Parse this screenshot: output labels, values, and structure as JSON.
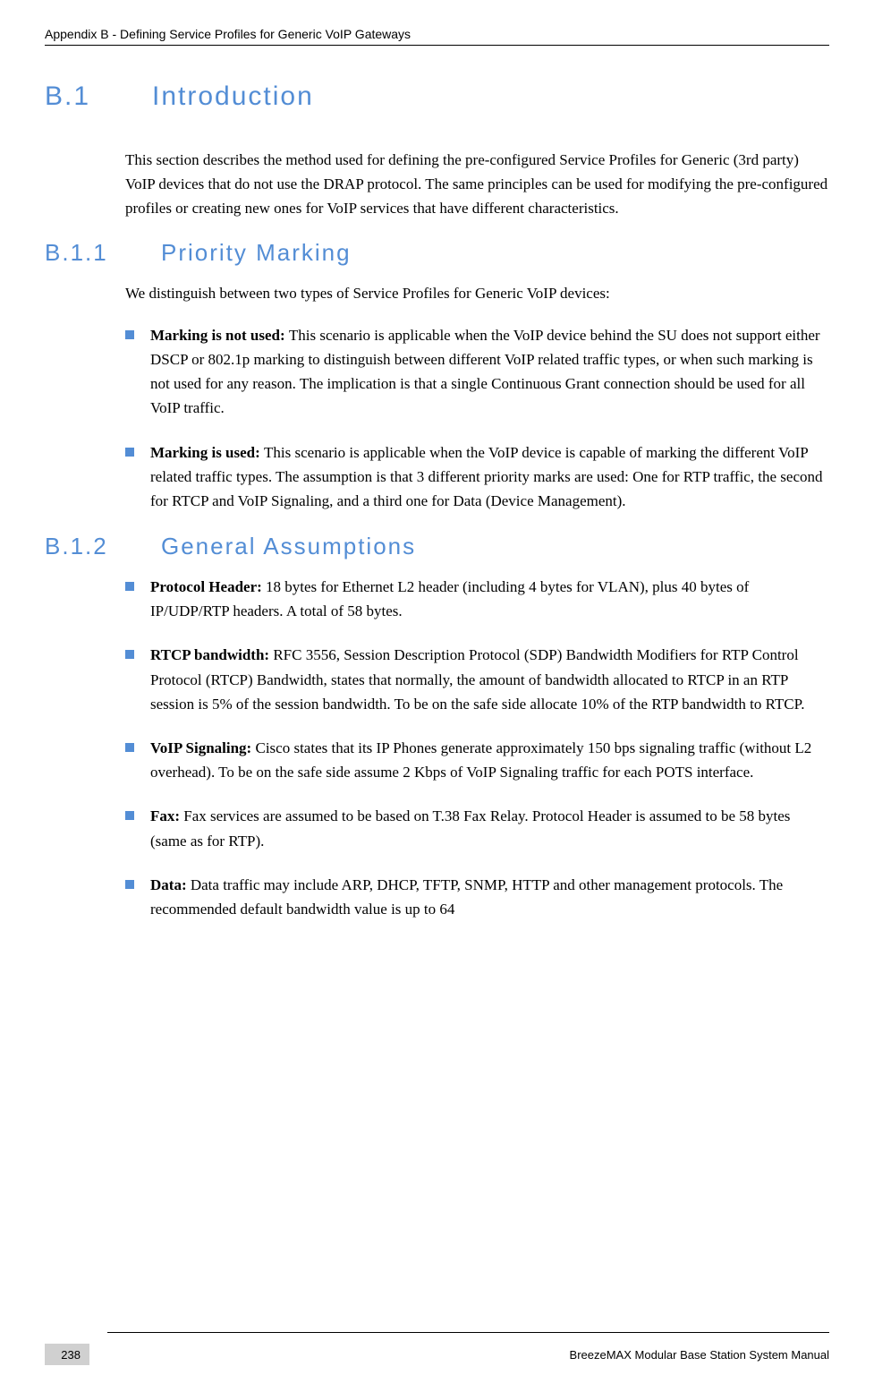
{
  "header": "Appendix B - Defining Service Profiles for Generic VoIP Gateways",
  "h1": {
    "num": "B.1",
    "title": "Introduction"
  },
  "intro_para": "This section describes the method used for defining the pre-configured Service Profiles for Generic (3rd party) VoIP devices that do not use the DRAP protocol. The same principles can be used for modifying the pre-configured profiles or creating new ones for VoIP services that have different characteristics.",
  "h2a": {
    "num": "B.1.1",
    "title": "Priority Marking"
  },
  "h2a_intro": "We distinguish between two types of Service Profiles for Generic VoIP devices:",
  "h2a_bullets": [
    {
      "lead": "Marking is not used: ",
      "rest": "This scenario is applicable when the VoIP device behind the SU does not support either DSCP or 802.1p marking to distinguish between different VoIP related traffic types, or when such marking is not used for any reason. The implication is that a single Continuous Grant connection should be used for all VoIP traffic."
    },
    {
      "lead": "Marking is used: ",
      "rest": "This scenario is applicable when the VoIP device is capable of marking the different VoIP related traffic types. The assumption is that 3 different priority marks are used: One for RTP traffic, the second for RTCP and VoIP Signaling, and a third one for Data (Device Management)."
    }
  ],
  "h2b": {
    "num": "B.1.2",
    "title": "General Assumptions"
  },
  "h2b_bullets": [
    {
      "lead": "Protocol Header: ",
      "rest": "18 bytes for Ethernet L2 header (including 4 bytes for VLAN), plus 40 bytes of IP/UDP/RTP headers. A total of 58 bytes."
    },
    {
      "lead": "RTCP bandwidth: ",
      "rest": "RFC 3556, Session Description Protocol (SDP) Bandwidth Modifiers for RTP Control Protocol (RTCP) Bandwidth, states that normally, the amount of bandwidth allocated to RTCP in an RTP session is 5% of the session bandwidth. To be on the safe side allocate 10% of the RTP bandwidth to RTCP."
    },
    {
      "lead": "VoIP Signaling: ",
      "rest": "Cisco states that its IP Phones generate approximately 150 bps signaling traffic (without L2 overhead). To be on the safe side assume 2 Kbps of VoIP Signaling traffic for each POTS interface."
    },
    {
      "lead": "Fax: ",
      "rest": "Fax services are assumed to be based on T.38 Fax Relay. Protocol Header is assumed to be 58 bytes (same as for RTP)."
    },
    {
      "lead": "Data: ",
      "rest": "Data traffic may include ARP, DHCP, TFTP, SNMP, HTTP and other management protocols. The recommended default bandwidth value is up to 64"
    }
  ],
  "footer": {
    "page": "238",
    "title": "BreezeMAX Modular Base Station System Manual"
  },
  "colors": {
    "heading": "#538dd5",
    "bullet": "#538dd5"
  }
}
